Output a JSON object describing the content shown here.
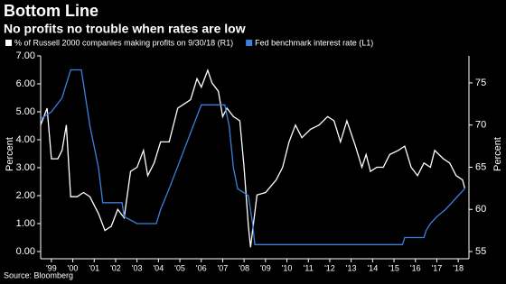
{
  "chart_data": {
    "type": "line",
    "title": "Bottom Line",
    "subtitle": "No profits no trouble when rates are low",
    "ylabel": "Percent",
    "y2label": "Percent",
    "source": "Source: Bloomberg",
    "xlim": [
      1999,
      2019
    ],
    "xticks": [
      {
        "value": 1999.5,
        "label": "'99"
      },
      {
        "value": 2000.5,
        "label": "'00"
      },
      {
        "value": 2001.5,
        "label": "'01"
      },
      {
        "value": 2002.5,
        "label": "'02"
      },
      {
        "value": 2003.5,
        "label": "'03"
      },
      {
        "value": 2004.5,
        "label": "'04"
      },
      {
        "value": 2005.5,
        "label": "'05"
      },
      {
        "value": 2006.5,
        "label": "'06"
      },
      {
        "value": 2007.5,
        "label": "'07"
      },
      {
        "value": 2008.5,
        "label": "'08"
      },
      {
        "value": 2009.5,
        "label": "'09"
      },
      {
        "value": 2010.5,
        "label": "'10"
      },
      {
        "value": 2011.5,
        "label": "'11"
      },
      {
        "value": 2012.5,
        "label": "'12"
      },
      {
        "value": 2013.5,
        "label": "'13"
      },
      {
        "value": 2014.5,
        "label": "'14"
      },
      {
        "value": 2015.5,
        "label": "'15"
      },
      {
        "value": 2016.5,
        "label": "'16"
      },
      {
        "value": 2017.5,
        "label": "'17"
      },
      {
        "value": 2018.5,
        "label": "'18"
      }
    ],
    "ylim": [
      0,
      7
    ],
    "yticks": [
      {
        "value": 0,
        "label": "0.00"
      },
      {
        "value": 1,
        "label": "1.00"
      },
      {
        "value": 2,
        "label": "2.00"
      },
      {
        "value": 3,
        "label": "3.00"
      },
      {
        "value": 4,
        "label": "4.00"
      },
      {
        "value": 5,
        "label": "5.00"
      },
      {
        "value": 6,
        "label": "6.00"
      },
      {
        "value": 7,
        "label": "7.00"
      }
    ],
    "y2lim": [
      55,
      78.2
    ],
    "y2ticks": [
      55,
      60,
      65,
      70,
      75
    ],
    "series": [
      {
        "name": "% of Russell 2000 companies making profits on 9/30/18 (R1)",
        "color": "#ffffff",
        "axis": "y2",
        "x": [
          1999.0,
          1999.3,
          1999.5,
          1999.8,
          2000.0,
          2000.2,
          2000.4,
          2000.7,
          2001.0,
          2001.3,
          2001.7,
          2002.0,
          2002.3,
          2002.6,
          2002.9,
          2003.2,
          2003.5,
          2003.8,
          2004.0,
          2004.3,
          2004.6,
          2005.0,
          2005.4,
          2005.7,
          2006.0,
          2006.3,
          2006.5,
          2006.8,
          2007.0,
          2007.3,
          2007.5,
          2007.7,
          2008.0,
          2008.3,
          2008.5,
          2008.7,
          2008.8,
          2009.1,
          2009.5,
          2010.0,
          2010.3,
          2010.6,
          2010.9,
          2011.2,
          2011.6,
          2012.0,
          2012.4,
          2012.7,
          2013.0,
          2013.3,
          2013.7,
          2014.0,
          2014.2,
          2014.4,
          2014.7,
          2015.0,
          2015.3,
          2015.7,
          2016.0,
          2016.3,
          2016.6,
          2016.9,
          2017.2,
          2017.4,
          2017.8,
          2018.1,
          2018.4,
          2018.7,
          2018.8
        ],
        "values": [
          70,
          72,
          66,
          66,
          67,
          70,
          61.5,
          61.5,
          62,
          61.5,
          59.5,
          57.5,
          58,
          60,
          59,
          64.5,
          65,
          67,
          64,
          65.5,
          68,
          68,
          72,
          72.5,
          73,
          75.5,
          74.5,
          76.5,
          75,
          74,
          71,
          72,
          71,
          70.5,
          65,
          58,
          55.5,
          61.7,
          62,
          63.5,
          65,
          68,
          70,
          68.5,
          69.5,
          70,
          71,
          70.5,
          68,
          70.5,
          67.5,
          65,
          66.5,
          64.5,
          65,
          65,
          66.5,
          67,
          67.5,
          65,
          64,
          65.5,
          65,
          67,
          66,
          65.5,
          64,
          63.5,
          62.5
        ]
      },
      {
        "name": "Fed benchmark interest rate (L1)",
        "color": "#3d7fe0",
        "x": [
          1999.0,
          1999.5,
          2000.0,
          2000.4,
          2000.9,
          2001.0,
          2001.3,
          2001.7,
          2001.9,
          2002.8,
          2002.9,
          2003.5,
          2004.4,
          2004.6,
          2005.0,
          2005.5,
          2006.0,
          2006.5,
          2007.6,
          2007.8,
          2008.0,
          2008.2,
          2008.7,
          2008.9,
          2009.0,
          2015.9,
          2016.0,
          2016.9,
          2017.0,
          2017.2,
          2017.5,
          2017.9,
          2018.2,
          2018.5,
          2018.8
        ],
        "values": [
          4.75,
          5.0,
          5.5,
          6.5,
          6.5,
          6.0,
          4.5,
          3.0,
          1.75,
          1.75,
          1.25,
          1.0,
          1.0,
          1.5,
          2.25,
          3.25,
          4.25,
          5.25,
          5.25,
          4.5,
          3.0,
          2.25,
          2.0,
          1.0,
          0.25,
          0.25,
          0.5,
          0.5,
          0.75,
          1.0,
          1.25,
          1.5,
          1.75,
          2.0,
          2.25
        ]
      }
    ]
  }
}
